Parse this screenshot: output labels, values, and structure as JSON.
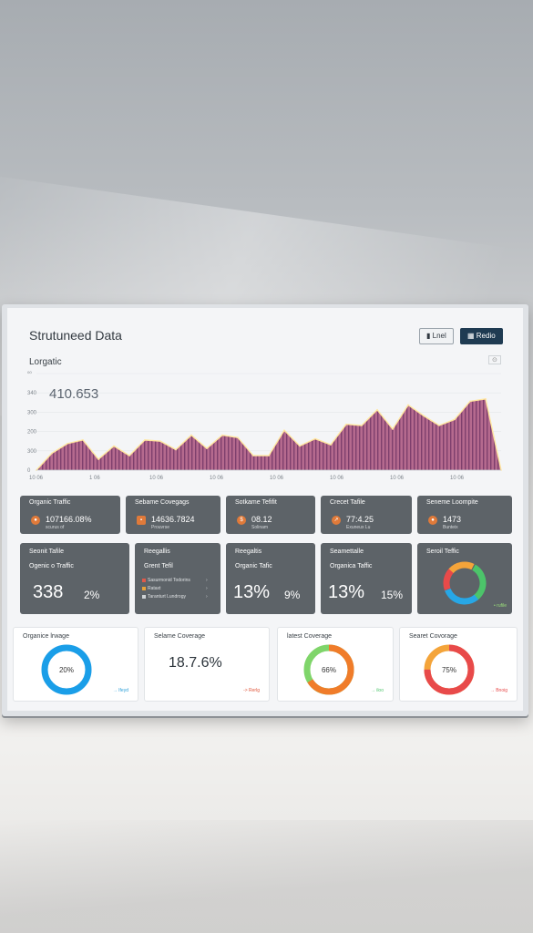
{
  "app": {
    "title": "Strutuneed Data"
  },
  "header": {
    "btn_light": "Lnel",
    "btn_dark": "Redio",
    "corner": "⊙"
  },
  "chart_section": {
    "label": "Lorgatic",
    "big_value": "410.653",
    "colors": {
      "fill": "#b56a8e",
      "stripe": "#7e3f6d",
      "line": "#ffe7a0",
      "peak": "#e06a6a"
    }
  },
  "chart_data": {
    "type": "area",
    "title": "",
    "xlabel": "",
    "ylabel": "",
    "y_ticks": [
      "⁰⁰",
      "340",
      "300",
      "200",
      "300",
      "0"
    ],
    "x_ticks": [
      "10 06",
      "1 06",
      "10 06",
      "10 06",
      "10 06",
      "10 06",
      "10 06",
      "10 06"
    ],
    "x": [
      0,
      1,
      2,
      3,
      4,
      5,
      6,
      7,
      8,
      9,
      10,
      11,
      12,
      13,
      14,
      15,
      16,
      17,
      18,
      19,
      20,
      21,
      22,
      23,
      24,
      25,
      26,
      27,
      28,
      29,
      30
    ],
    "values": [
      0,
      14,
      22,
      25,
      9,
      20,
      12,
      25,
      24,
      17,
      29,
      18,
      29,
      27,
      12,
      12,
      33,
      20,
      26,
      21,
      38,
      37,
      50,
      34,
      54,
      45,
      37,
      42,
      57,
      59,
      0
    ],
    "ylim": [
      0,
      80
    ]
  },
  "row1": [
    {
      "title": "Organic Traffic",
      "value": "107166.08%",
      "sub": "scurus of"
    },
    {
      "title": "Sebame Covegags",
      "value": "14636.7824",
      "sub": "Prouvrse"
    },
    {
      "title": "Sotkame Tefifit",
      "value": "08.12",
      "sub": "Solinam"
    },
    {
      "title": "Crecet Tafile",
      "value": "77:4.25",
      "sub": "Exuneux Lu"
    },
    {
      "title": "Seneme Loompite",
      "value": "1473",
      "sub": "Bunteix"
    }
  ],
  "row2": [
    {
      "title": "Seonit Tafile",
      "subtitle": "Ogenic o Traffic",
      "big": "338",
      "pct": "2%"
    },
    {
      "title": "Reegallis",
      "subtitle": "Grent Tefil",
      "items": [
        "Sasurmonid Todorins",
        "Rataxt",
        "Taranturt Lundrogy"
      ]
    },
    {
      "title": "Reegaltis",
      "subtitle": "Organic Tafic",
      "big": "13%",
      "pct": "9%"
    },
    {
      "title": "Seamettalle",
      "subtitle": "Organica Taffic",
      "big": "13%",
      "pct": "15%"
    },
    {
      "title": "Seroil Teffic",
      "foot": "• rufile"
    }
  ],
  "row3": [
    {
      "title": "Organice lrwage",
      "center": "20%",
      "foot": "→ Ifeyd",
      "color": "#1a9ee8"
    },
    {
      "title": "Selame Coverage",
      "big": "18.7.6%",
      "foot": "-> Rerlg",
      "color": "#e0553a"
    },
    {
      "title": "latest Coverage",
      "center": "66%",
      "foot": "→ iloo",
      "color": "#f07c2a"
    },
    {
      "title": "Searet Covorage",
      "center": "75%",
      "foot": "→ Bnoig",
      "color": "#e84a4a"
    }
  ]
}
